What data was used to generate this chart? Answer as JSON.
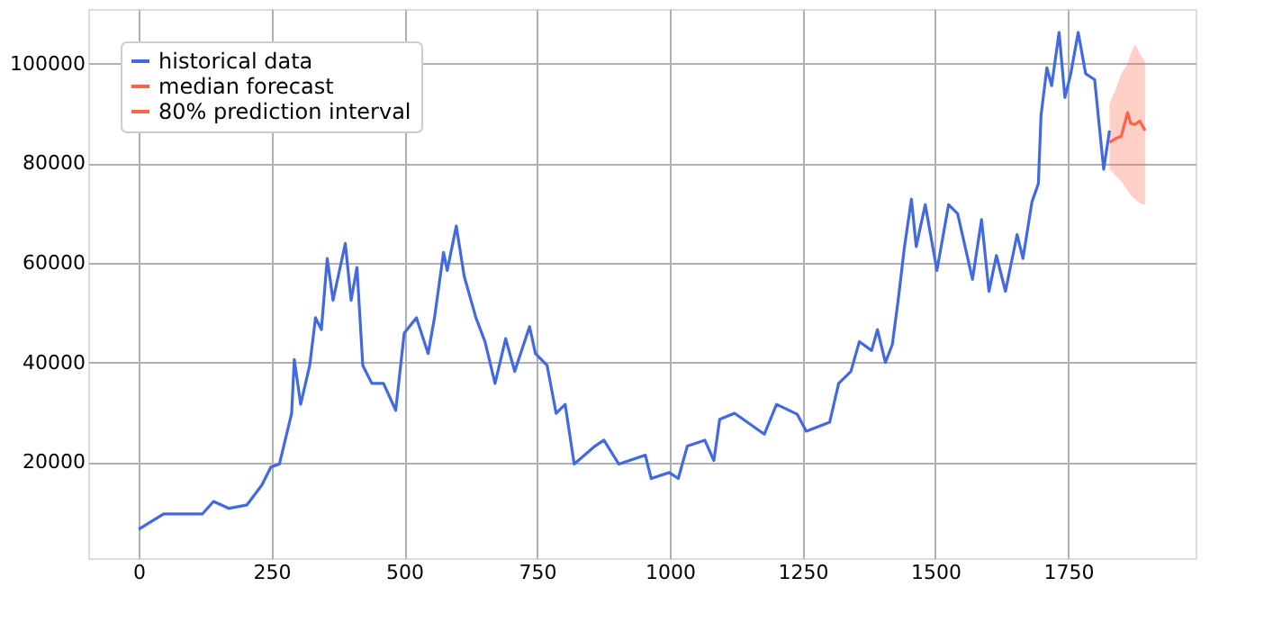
{
  "chart_data": {
    "type": "line",
    "xlim": [
      -95,
      1990
    ],
    "ylim": [
      700,
      111000
    ],
    "xticks": [
      0,
      250,
      500,
      750,
      1000,
      1250,
      1500,
      1750
    ],
    "yticks": [
      20000,
      40000,
      60000,
      80000,
      100000
    ],
    "grid": true,
    "legend": "top left",
    "annotations": [
      "80% prediction interval"
    ],
    "series": [
      {
        "name": "historical data",
        "color": "#4169e1",
        "x": [
          0,
          47,
          120,
          141,
          170,
          204,
          232,
          249,
          265,
          288,
          293,
          305,
          322,
          333,
          344,
          355,
          366,
          389,
          400,
          411,
          422,
          439,
          461,
          484,
          500,
          523,
          545,
          557,
          574,
          581,
          598,
          613,
          635,
          652,
          671,
          691,
          708,
          736,
          747,
          769,
          786,
          803,
          820,
          859,
          876,
          904,
          954,
          965,
          999,
          1016,
          1033,
          1066,
          1083,
          1094,
          1122,
          1178,
          1201,
          1240,
          1257,
          1301,
          1318,
          1341,
          1357,
          1380,
          1391,
          1406,
          1419,
          1430,
          1442,
          1455,
          1464,
          1481,
          1503,
          1525,
          1542,
          1570,
          1587,
          1601,
          1615,
          1632,
          1654,
          1665,
          1682,
          1694,
          1699,
          1710,
          1719,
          1733,
          1744,
          1755,
          1769,
          1783,
          1800,
          1809,
          1817,
          1828
        ],
        "values": [
          6500,
          9600,
          9600,
          12100,
          10700,
          11400,
          15400,
          19000,
          19600,
          29800,
          40600,
          31600,
          39400,
          49000,
          46600,
          60900,
          52500,
          63900,
          52500,
          59100,
          39400,
          35800,
          35800,
          30400,
          45900,
          49000,
          41800,
          49000,
          62100,
          58500,
          67400,
          57300,
          49000,
          44200,
          35800,
          44800,
          38200,
          47200,
          41800,
          39400,
          29800,
          31600,
          19600,
          23200,
          24400,
          19600,
          21400,
          16700,
          17900,
          16700,
          23200,
          24400,
          20300,
          28600,
          29800,
          25600,
          31600,
          29600,
          26200,
          28000,
          35800,
          38200,
          44200,
          42400,
          46600,
          40000,
          43600,
          52500,
          63300,
          72800,
          63300,
          71700,
          58500,
          71700,
          69900,
          56700,
          68700,
          54300,
          61500,
          54300,
          65700,
          60900,
          72300,
          75900,
          89600,
          99200,
          95600,
          106300,
          93200,
          98000,
          106300,
          98000,
          96800,
          87200,
          78800,
          86600
        ]
      },
      {
        "name": "median forecast",
        "color": "#ff6347",
        "x": [
          1828,
          1840,
          1850,
          1862,
          1868,
          1876,
          1885,
          1895
        ],
        "values": [
          84200,
          85000,
          85400,
          90200,
          88000,
          87800,
          88500,
          86600
        ],
        "lower": [
          78800,
          77500,
          76400,
          74500,
          73600,
          72800,
          72000,
          71700
        ],
        "upper": [
          92000,
          95000,
          98000,
          100000,
          102000,
          104000,
          102000,
          100400
        ]
      }
    ]
  }
}
